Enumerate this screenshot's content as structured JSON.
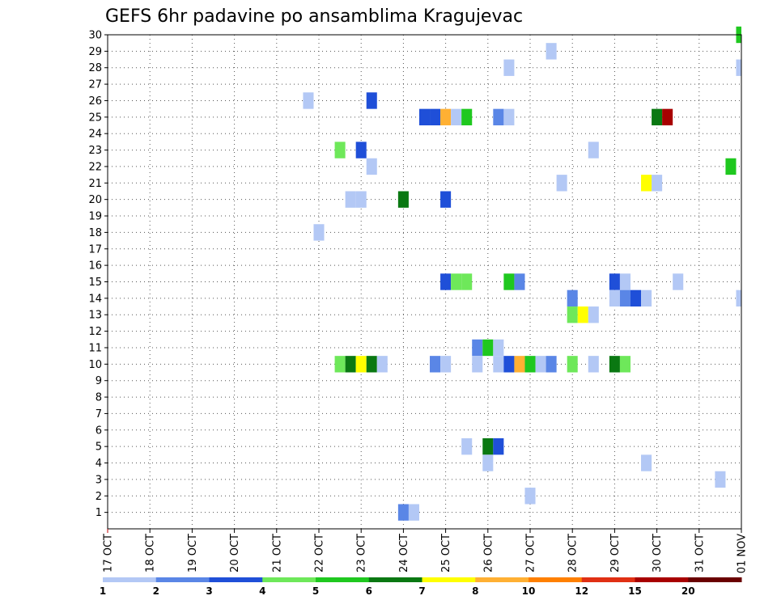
{
  "chart_data": {
    "type": "heatmap",
    "title": "GEFS 6hr padavine po ansamblima Kragujevac",
    "xlabel": "",
    "ylabel": "",
    "x_tick_labels": [
      "17 OCT",
      "18 OCT",
      "19 OCT",
      "20 OCT",
      "21 OCT",
      "22 OCT",
      "23 OCT",
      "24 OCT",
      "25 OCT",
      "26 OCT",
      "27 OCT",
      "28 OCT",
      "29 OCT",
      "30 OCT",
      "31 OCT",
      "01 NOV"
    ],
    "x_range_days": [
      0,
      15
    ],
    "y_tick_labels": [
      "1",
      "2",
      "3",
      "4",
      "5",
      "6",
      "7",
      "8",
      "9",
      "10",
      "11",
      "12",
      "13",
      "14",
      "15",
      "16",
      "17",
      "18",
      "19",
      "20",
      "21",
      "22",
      "23",
      "24",
      "25",
      "26",
      "27",
      "28",
      "29",
      "30"
    ],
    "y_range": [
      0,
      30
    ],
    "grid": true,
    "colorbar": {
      "position": "bottom",
      "levels": [
        "1",
        "2",
        "3",
        "4",
        "5",
        "6",
        "7",
        "8",
        "10",
        "12",
        "15",
        "20"
      ],
      "colors": [
        "#b3c8f5",
        "#5a86e6",
        "#1f4fd8",
        "#6ee85a",
        "#1fc81f",
        "#0a7812",
        "#ffff00",
        "#ffb033",
        "#ff8000",
        "#e03014",
        "#a80000",
        "#6a0000"
      ]
    },
    "cell_color_by_level": {
      "1": "#b3c8f5",
      "2": "#5a86e6",
      "3": "#1f4fd8",
      "4": "#6ee85a",
      "5": "#1fc81f",
      "6": "#0a7812",
      "7": "#ffff00",
      "8": "#ffb033",
      "10": "#ff8000",
      "12": "#e03014",
      "15": "#a80000",
      "20": "#6a0000"
    },
    "cells": [
      {
        "m": 30,
        "t": 15.0,
        "v": 5
      },
      {
        "m": 29,
        "t": 10.5,
        "v": 1
      },
      {
        "m": 28,
        "t": 9.5,
        "v": 1
      },
      {
        "m": 28,
        "t": 15.0,
        "v": 1
      },
      {
        "m": 26,
        "t": 4.75,
        "v": 1
      },
      {
        "m": 26,
        "t": 6.25,
        "v": 3
      },
      {
        "m": 25,
        "t": 7.5,
        "v": 3
      },
      {
        "m": 25,
        "t": 7.75,
        "v": 3
      },
      {
        "m": 25,
        "t": 8.0,
        "v": 8
      },
      {
        "m": 25,
        "t": 8.25,
        "v": 1
      },
      {
        "m": 25,
        "t": 8.5,
        "v": 5
      },
      {
        "m": 25,
        "t": 9.25,
        "v": 2
      },
      {
        "m": 25,
        "t": 9.5,
        "v": 1
      },
      {
        "m": 25,
        "t": 13.0,
        "v": 6
      },
      {
        "m": 25,
        "t": 13.25,
        "v": 15
      },
      {
        "m": 23,
        "t": 5.5,
        "v": 4
      },
      {
        "m": 23,
        "t": 6.0,
        "v": 3
      },
      {
        "m": 23,
        "t": 11.5,
        "v": 1
      },
      {
        "m": 22,
        "t": 6.25,
        "v": 1
      },
      {
        "m": 22,
        "t": 14.75,
        "v": 5
      },
      {
        "m": 21,
        "t": 10.75,
        "v": 1
      },
      {
        "m": 21,
        "t": 12.75,
        "v": 7
      },
      {
        "m": 21,
        "t": 13.0,
        "v": 1
      },
      {
        "m": 20,
        "t": 5.75,
        "v": 1
      },
      {
        "m": 20,
        "t": 6.0,
        "v": 1
      },
      {
        "m": 20,
        "t": 7.0,
        "v": 6
      },
      {
        "m": 20,
        "t": 8.0,
        "v": 3
      },
      {
        "m": 18,
        "t": 5.0,
        "v": 1
      },
      {
        "m": 15,
        "t": 8.0,
        "v": 3
      },
      {
        "m": 15,
        "t": 8.25,
        "v": 4
      },
      {
        "m": 15,
        "t": 8.5,
        "v": 4
      },
      {
        "m": 15,
        "t": 9.5,
        "v": 5
      },
      {
        "m": 15,
        "t": 9.75,
        "v": 2
      },
      {
        "m": 15,
        "t": 12.0,
        "v": 3
      },
      {
        "m": 15,
        "t": 12.25,
        "v": 1
      },
      {
        "m": 15,
        "t": 13.5,
        "v": 1
      },
      {
        "m": 14,
        "t": 11.0,
        "v": 2
      },
      {
        "m": 14,
        "t": 12.0,
        "v": 1
      },
      {
        "m": 14,
        "t": 12.25,
        "v": 2
      },
      {
        "m": 14,
        "t": 12.5,
        "v": 3
      },
      {
        "m": 14,
        "t": 12.75,
        "v": 1
      },
      {
        "m": 14,
        "t": 15.0,
        "v": 1
      },
      {
        "m": 13,
        "t": 11.0,
        "v": 4
      },
      {
        "m": 13,
        "t": 11.25,
        "v": 7
      },
      {
        "m": 13,
        "t": 11.5,
        "v": 1
      },
      {
        "m": 11,
        "t": 8.75,
        "v": 2
      },
      {
        "m": 11,
        "t": 9.0,
        "v": 5
      },
      {
        "m": 11,
        "t": 9.25,
        "v": 1
      },
      {
        "m": 10,
        "t": 5.5,
        "v": 4
      },
      {
        "m": 10,
        "t": 5.75,
        "v": 6
      },
      {
        "m": 10,
        "t": 6.0,
        "v": 7
      },
      {
        "m": 10,
        "t": 6.25,
        "v": 6
      },
      {
        "m": 10,
        "t": 6.5,
        "v": 1
      },
      {
        "m": 10,
        "t": 7.75,
        "v": 2
      },
      {
        "m": 10,
        "t": 8.0,
        "v": 1
      },
      {
        "m": 10,
        "t": 8.75,
        "v": 1
      },
      {
        "m": 10,
        "t": 9.25,
        "v": 1
      },
      {
        "m": 10,
        "t": 9.5,
        "v": 3
      },
      {
        "m": 10,
        "t": 9.75,
        "v": 8
      },
      {
        "m": 10,
        "t": 10.0,
        "v": 5
      },
      {
        "m": 10,
        "t": 10.25,
        "v": 1
      },
      {
        "m": 10,
        "t": 10.5,
        "v": 2
      },
      {
        "m": 10,
        "t": 11.0,
        "v": 4
      },
      {
        "m": 10,
        "t": 11.5,
        "v": 1
      },
      {
        "m": 10,
        "t": 12.0,
        "v": 6
      },
      {
        "m": 10,
        "t": 12.25,
        "v": 4
      },
      {
        "m": 5,
        "t": 8.5,
        "v": 1
      },
      {
        "m": 5,
        "t": 9.0,
        "v": 6
      },
      {
        "m": 5,
        "t": 9.25,
        "v": 3
      },
      {
        "m": 4,
        "t": 9.0,
        "v": 1
      },
      {
        "m": 4,
        "t": 12.75,
        "v": 1
      },
      {
        "m": 3,
        "t": 14.5,
        "v": 1
      },
      {
        "m": 2,
        "t": 10.0,
        "v": 1
      },
      {
        "m": 1,
        "t": 7.0,
        "v": 2
      },
      {
        "m": 1,
        "t": 7.25,
        "v": 1
      }
    ]
  }
}
